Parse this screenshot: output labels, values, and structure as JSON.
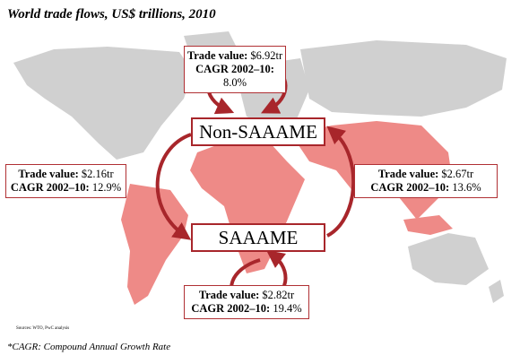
{
  "title": "World trade flows, US$ trillions, 2010",
  "nodes": [
    {
      "label": "Non-SAAAME"
    },
    {
      "label": "SAAAME"
    }
  ],
  "flows": [
    {
      "trade_label": "Trade value:",
      "trade_value": "$6.92tr",
      "cagr_label": "CAGR 2002–10:",
      "cagr_value": "8.0%"
    },
    {
      "trade_label": "Trade value:",
      "trade_value": "$2.16tr",
      "cagr_label": "CAGR 2002–10:",
      "cagr_value": "12.9%"
    },
    {
      "trade_label": "Trade value:",
      "trade_value": "$2.67tr",
      "cagr_label": "CAGR 2002–10:",
      "cagr_value": "13.6%"
    },
    {
      "trade_label": "Trade value:",
      "trade_value": "$2.82tr",
      "cagr_label": "CAGR 2002–10:",
      "cagr_value": "19.4%"
    }
  ],
  "source": "Sources: WTO, PwC analysis",
  "footnote": "*CAGR: Compound Annual Growth Rate"
}
